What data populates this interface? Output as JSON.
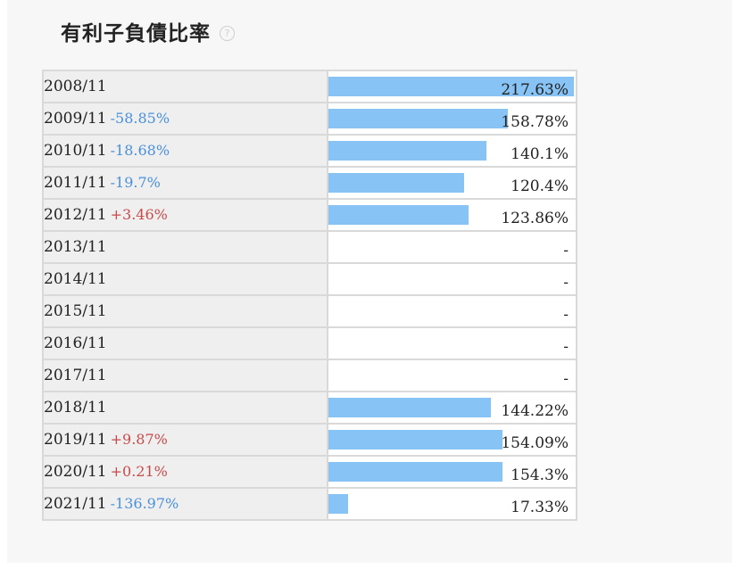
{
  "header": {
    "title": "有利子負債比率",
    "help_icon": "question-circle-icon"
  },
  "colors": {
    "bar": "#87c3f5",
    "negative_change": "#4a90d9",
    "positive_change": "#c94a4a"
  },
  "chart_data": {
    "type": "bar",
    "orientation": "horizontal",
    "max_value": 217.63,
    "rows": [
      {
        "period": "2008/11",
        "change": "",
        "value": 217.63,
        "value_label": "217.63%"
      },
      {
        "period": "2009/11",
        "change": "-58.85%",
        "value": 158.78,
        "value_label": "158.78%"
      },
      {
        "period": "2010/11",
        "change": "-18.68%",
        "value": 140.1,
        "value_label": "140.1%"
      },
      {
        "period": "2011/11",
        "change": "-19.7%",
        "value": 120.4,
        "value_label": "120.4%"
      },
      {
        "period": "2012/11",
        "change": "+3.46%",
        "value": 123.86,
        "value_label": "123.86%"
      },
      {
        "period": "2013/11",
        "change": "",
        "value": null,
        "value_label": "-"
      },
      {
        "period": "2014/11",
        "change": "",
        "value": null,
        "value_label": "-"
      },
      {
        "period": "2015/11",
        "change": "",
        "value": null,
        "value_label": "-"
      },
      {
        "period": "2016/11",
        "change": "",
        "value": null,
        "value_label": "-"
      },
      {
        "period": "2017/11",
        "change": "",
        "value": null,
        "value_label": "-"
      },
      {
        "period": "2018/11",
        "change": "",
        "value": 144.22,
        "value_label": "144.22%"
      },
      {
        "period": "2019/11",
        "change": "+9.87%",
        "value": 154.09,
        "value_label": "154.09%"
      },
      {
        "period": "2020/11",
        "change": "+0.21%",
        "value": 154.3,
        "value_label": "154.3%"
      },
      {
        "period": "2021/11",
        "change": "-136.97%",
        "value": 17.33,
        "value_label": "17.33%"
      }
    ]
  }
}
